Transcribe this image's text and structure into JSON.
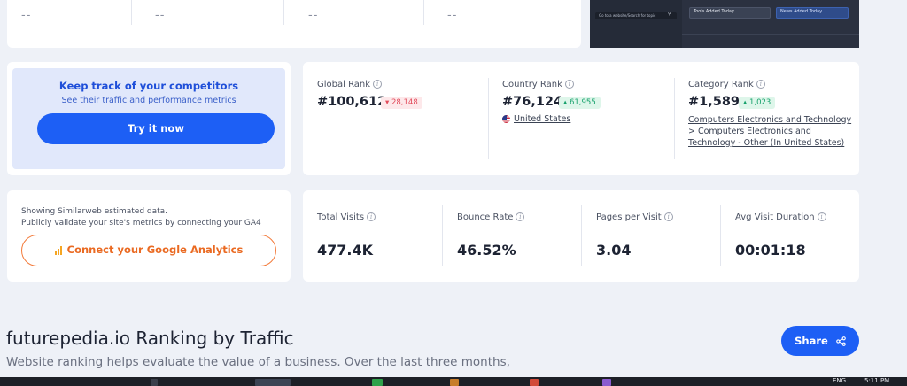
{
  "top_card": {
    "placeholders": [
      "--",
      "--",
      "--",
      "--"
    ]
  },
  "preview": {
    "search_text": "Go to a website/Search for topic",
    "badge_tools": "Tools Added Today",
    "badge_news": "News Added Today"
  },
  "competitor_promo": {
    "title": "Keep track of your competitors",
    "subtitle": "See their traffic and performance metrics",
    "button_label": "Try it now"
  },
  "ranks": {
    "global": {
      "label": "Global Rank",
      "value": "#100,612",
      "change": "28,148",
      "direction": "down"
    },
    "country": {
      "label": "Country Rank",
      "value": "#76,124",
      "change": "61,955",
      "direction": "up",
      "country_name": "United States"
    },
    "category": {
      "label": "Category Rank",
      "value": "#1,589",
      "change": "1,023",
      "direction": "up",
      "category_path": "Computers Electronics and Technology > Computers Electronics and Technology - Other (In United States)"
    }
  },
  "ga_promo": {
    "line1": "Showing Similarweb estimated data.",
    "line2": "Publicly validate your site's metrics by connecting your GA4",
    "button_label": "Connect your Google Analytics"
  },
  "metrics": [
    {
      "label": "Total Visits",
      "value": "477.4K"
    },
    {
      "label": "Bounce Rate",
      "value": "46.52%"
    },
    {
      "label": "Pages per Visit",
      "value": "3.04"
    },
    {
      "label": "Avg Visit Duration",
      "value": "00:01:18"
    }
  ],
  "ranking_section": {
    "title": "futurepedia.io Ranking by Traffic",
    "description_line1": "Website ranking helps evaluate the value of a business. Over the last three months,",
    "share_label": "Share"
  },
  "taskbar": {
    "lang": "ENG",
    "time": "5:11 PM"
  },
  "colors": {
    "primary": "#1d5ff5",
    "orange": "#ea6a22",
    "down": "#e24b5b",
    "up": "#14a06a"
  }
}
